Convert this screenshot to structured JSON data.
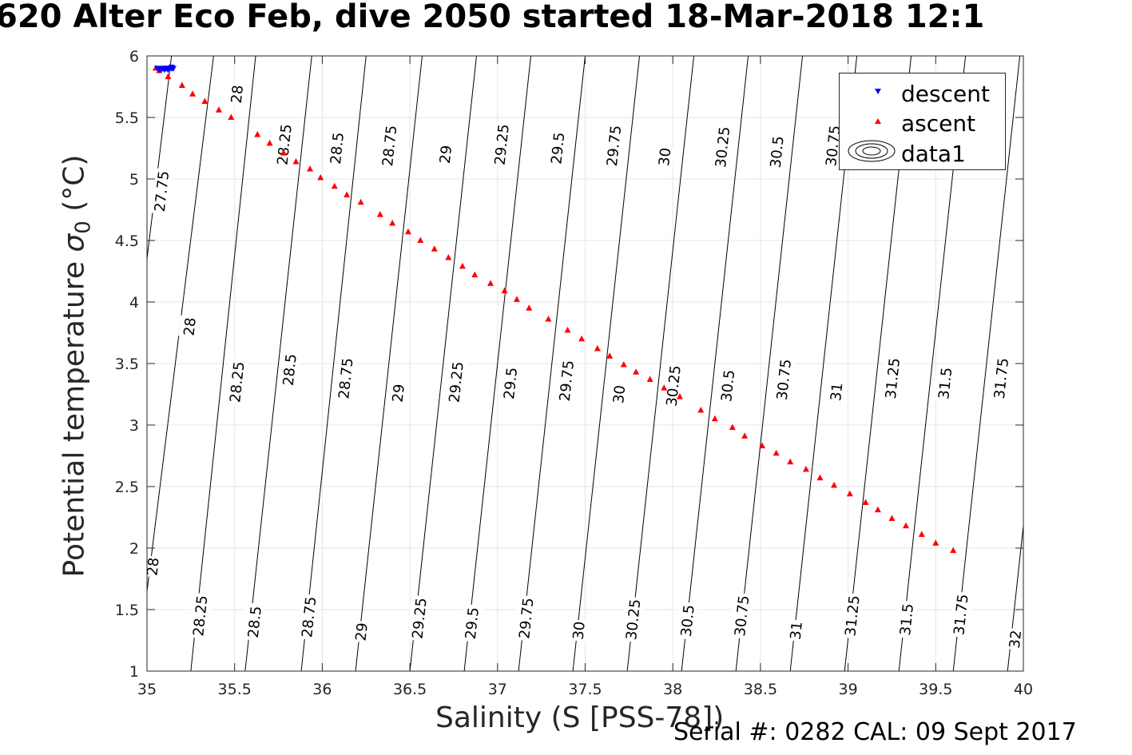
{
  "header": {
    "title": "620 Alter Eco Feb, dive 2050 started 18-Mar-2018 12:1",
    "serial_text": "Serial #: 0282  CAL: 09 Sept 2017"
  },
  "colors": {
    "descent": "#0000ff",
    "ascent": "#ff0000",
    "contour": "#000000",
    "grid": "#e6e6e6",
    "axis": "#262626"
  },
  "chart_data": {
    "type": "scatter",
    "title": "620 Alter Eco Feb, dive 2050 started 18-Mar-2018 12:1",
    "xlabel": "Salinity (S [PSS-78])",
    "ylabel_prefix": "Potential temperature ",
    "ylabel_sigma": "σ",
    "ylabel_sub": "0",
    "ylabel_suffix": " (°C)",
    "xlim": [
      35,
      40
    ],
    "ylim": [
      1,
      6
    ],
    "xticks": [
      "35",
      "35.5",
      "36",
      "36.5",
      "37",
      "37.5",
      "38",
      "38.5",
      "39",
      "39.5",
      "40"
    ],
    "yticks": [
      "1",
      "1.5",
      "2",
      "2.5",
      "3",
      "3.5",
      "4",
      "4.5",
      "5",
      "5.5",
      "6"
    ],
    "grid": true,
    "legend_position": "top-right",
    "series": [
      {
        "name": "descent",
        "marker": "triangle-down",
        "color": "#0000ff",
        "x": [
          35.06,
          35.07,
          35.08,
          35.09,
          35.1,
          35.1,
          35.11,
          35.12,
          35.12,
          35.13,
          35.13,
          35.14,
          35.14,
          35.15
        ],
        "y": [
          5.9,
          5.89,
          5.89,
          5.9,
          5.89,
          5.9,
          5.9,
          5.89,
          5.9,
          5.9,
          5.9,
          5.9,
          5.91,
          5.9
        ]
      },
      {
        "name": "ascent",
        "marker": "triangle-up",
        "color": "#ff0000",
        "x": [
          35.05,
          35.07,
          35.12,
          35.2,
          35.26,
          35.33,
          35.41,
          35.48,
          35.63,
          35.7,
          35.78,
          35.85,
          35.93,
          35.99,
          36.07,
          36.14,
          36.22,
          36.33,
          36.4,
          36.49,
          36.56,
          36.64,
          36.72,
          36.8,
          36.87,
          36.96,
          37.04,
          37.11,
          37.18,
          37.29,
          37.4,
          37.48,
          37.57,
          37.64,
          37.72,
          37.79,
          37.87,
          37.95,
          38.04,
          38.16,
          38.24,
          38.34,
          38.41,
          38.51,
          38.59,
          38.67,
          38.76,
          38.84,
          38.92,
          39.01,
          39.1,
          39.17,
          39.25,
          39.33,
          39.42,
          39.5,
          39.6
        ],
        "y": [
          5.9,
          5.88,
          5.83,
          5.76,
          5.69,
          5.63,
          5.56,
          5.5,
          5.36,
          5.29,
          5.21,
          5.14,
          5.08,
          5.01,
          4.94,
          4.87,
          4.81,
          4.71,
          4.64,
          4.57,
          4.5,
          4.43,
          4.36,
          4.29,
          4.22,
          4.15,
          4.09,
          4.02,
          3.95,
          3.86,
          3.77,
          3.7,
          3.62,
          3.56,
          3.49,
          3.43,
          3.37,
          3.3,
          3.23,
          3.12,
          3.05,
          2.98,
          2.91,
          2.83,
          2.77,
          2.7,
          2.64,
          2.57,
          2.51,
          2.44,
          2.37,
          2.31,
          2.24,
          2.18,
          2.11,
          2.04,
          1.98
        ]
      },
      {
        "name": "data1",
        "type": "contour",
        "note": "sigma0 isopycnals",
        "levels": [
          "27.75",
          "28",
          "28.25",
          "28.5",
          "28.75",
          "29",
          "29.25",
          "29.5",
          "29.75",
          "30",
          "30.25",
          "30.5",
          "30.75",
          "31",
          "31.25",
          "31.5",
          "31.75",
          "32"
        ],
        "contours": [
          {
            "level": "27.75",
            "x": [
              35.0,
              35.14
            ],
            "y": [
              4.35,
              6.0
            ]
          },
          {
            "level": "28",
            "x": [
              35.0,
              35.38
            ],
            "y": [
              1.65,
              6.0
            ]
          },
          {
            "level": "28.25",
            "x": [
              35.25,
              35.62
            ],
            "y": [
              1.0,
              6.0
            ]
          },
          {
            "level": "28.5",
            "x": [
              35.56,
              35.94
            ],
            "y": [
              1.0,
              6.0
            ]
          },
          {
            "level": "28.75",
            "x": [
              35.88,
              36.25
            ],
            "y": [
              1.0,
              6.0
            ]
          },
          {
            "level": "29",
            "x": [
              36.19,
              36.57
            ],
            "y": [
              1.0,
              6.0
            ]
          },
          {
            "level": "29.25",
            "x": [
              36.5,
              36.88
            ],
            "y": [
              1.0,
              6.0
            ]
          },
          {
            "level": "29.5",
            "x": [
              36.81,
              37.19
            ],
            "y": [
              1.0,
              6.0
            ]
          },
          {
            "level": "29.75",
            "x": [
              37.12,
              37.5
            ],
            "y": [
              1.0,
              6.0
            ]
          },
          {
            "level": "30",
            "x": [
              37.43,
              37.81
            ],
            "y": [
              1.0,
              6.0
            ]
          },
          {
            "level": "30.25",
            "x": [
              37.74,
              38.12
            ],
            "y": [
              1.0,
              6.0
            ]
          },
          {
            "level": "30.5",
            "x": [
              38.05,
              38.43
            ],
            "y": [
              1.0,
              6.0
            ]
          },
          {
            "level": "30.75",
            "x": [
              38.36,
              38.74
            ],
            "y": [
              1.0,
              6.0
            ]
          },
          {
            "level": "31",
            "x": [
              38.67,
              39.05
            ],
            "y": [
              1.0,
              6.0
            ]
          },
          {
            "level": "31.25",
            "x": [
              38.98,
              39.36
            ],
            "y": [
              1.0,
              6.0
            ]
          },
          {
            "level": "31.5",
            "x": [
              39.29,
              39.67
            ],
            "y": [
              1.0,
              6.0
            ]
          },
          {
            "level": "31.75",
            "x": [
              39.6,
              39.98
            ],
            "y": [
              1.0,
              6.0
            ]
          },
          {
            "level": "32",
            "x": [
              39.91,
              40.0
            ],
            "y": [
              1.0,
              2.18
            ]
          }
        ],
        "contour_labels": [
          {
            "text": "27.75",
            "x": 35.08,
            "y": 4.9
          },
          {
            "text": "28",
            "x": 35.51,
            "y": 5.69
          },
          {
            "text": "28.25",
            "x": 35.78,
            "y": 5.28
          },
          {
            "text": "28.5",
            "x": 36.08,
            "y": 5.25
          },
          {
            "text": "28.75",
            "x": 36.38,
            "y": 5.27
          },
          {
            "text": "29",
            "x": 36.7,
            "y": 5.2
          },
          {
            "text": "29.25",
            "x": 37.02,
            "y": 5.28
          },
          {
            "text": "29.5",
            "x": 37.34,
            "y": 5.25
          },
          {
            "text": "29.75",
            "x": 37.66,
            "y": 5.27
          },
          {
            "text": "30",
            "x": 37.95,
            "y": 5.18
          },
          {
            "text": "30.25",
            "x": 38.28,
            "y": 5.26
          },
          {
            "text": "30.5",
            "x": 38.59,
            "y": 5.22
          },
          {
            "text": "30.75",
            "x": 38.91,
            "y": 5.27
          },
          {
            "text": "28",
            "x": 35.24,
            "y": 3.8
          },
          {
            "text": "28.25",
            "x": 35.51,
            "y": 3.35
          },
          {
            "text": "28.5",
            "x": 35.81,
            "y": 3.45
          },
          {
            "text": "28.75",
            "x": 36.13,
            "y": 3.38
          },
          {
            "text": "29",
            "x": 36.43,
            "y": 3.26
          },
          {
            "text": "29.25",
            "x": 36.76,
            "y": 3.35
          },
          {
            "text": "29.5",
            "x": 37.07,
            "y": 3.34
          },
          {
            "text": "29.75",
            "x": 37.39,
            "y": 3.36
          },
          {
            "text": "30",
            "x": 37.69,
            "y": 3.25
          },
          {
            "text": "30.25",
            "x": 38.0,
            "y": 3.32
          },
          {
            "text": "30.5",
            "x": 38.31,
            "y": 3.32
          },
          {
            "text": "30.75",
            "x": 38.63,
            "y": 3.37
          },
          {
            "text": "31",
            "x": 38.93,
            "y": 3.27
          },
          {
            "text": "31.25",
            "x": 39.25,
            "y": 3.38
          },
          {
            "text": "31.5",
            "x": 39.55,
            "y": 3.34
          },
          {
            "text": "31.75",
            "x": 39.87,
            "y": 3.38
          },
          {
            "text": "28",
            "x": 35.03,
            "y": 1.85
          },
          {
            "text": "28.25",
            "x": 35.3,
            "y": 1.45
          },
          {
            "text": "28.5",
            "x": 35.61,
            "y": 1.4
          },
          {
            "text": "28.75",
            "x": 35.92,
            "y": 1.44
          },
          {
            "text": "29",
            "x": 36.22,
            "y": 1.32
          },
          {
            "text": "29.25",
            "x": 36.55,
            "y": 1.43
          },
          {
            "text": "29.5",
            "x": 36.85,
            "y": 1.39
          },
          {
            "text": "29.75",
            "x": 37.16,
            "y": 1.43
          },
          {
            "text": "30",
            "x": 37.46,
            "y": 1.33
          },
          {
            "text": "30.25",
            "x": 37.77,
            "y": 1.42
          },
          {
            "text": "30.5",
            "x": 38.08,
            "y": 1.41
          },
          {
            "text": "30.75",
            "x": 38.39,
            "y": 1.45
          },
          {
            "text": "31",
            "x": 38.7,
            "y": 1.33
          },
          {
            "text": "31.25",
            "x": 39.02,
            "y": 1.45
          },
          {
            "text": "31.5",
            "x": 39.33,
            "y": 1.42
          },
          {
            "text": "31.75",
            "x": 39.64,
            "y": 1.46
          },
          {
            "text": "32",
            "x": 39.95,
            "y": 1.26
          }
        ]
      }
    ]
  }
}
